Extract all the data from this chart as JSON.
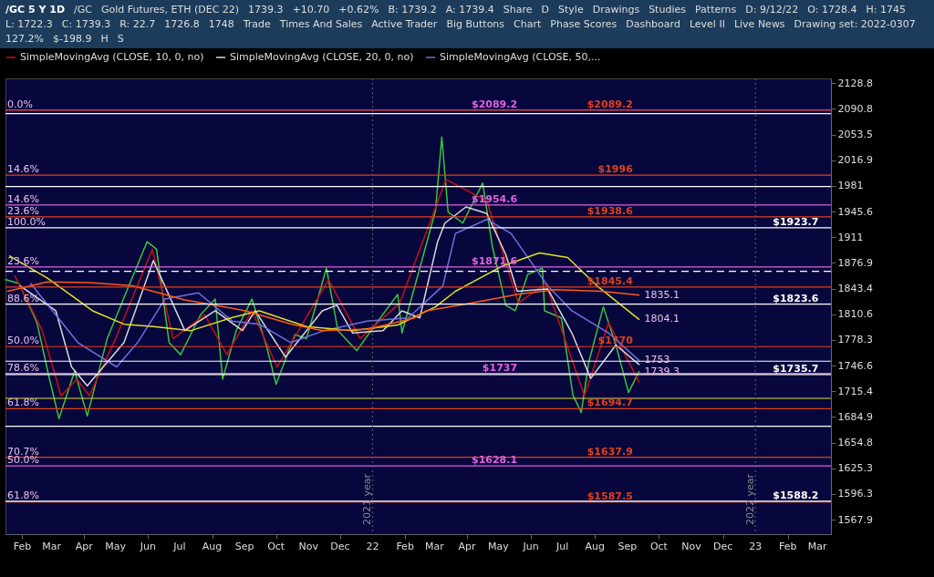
{
  "chart_data": {
    "type": "line",
    "title": "/GC 5 Y 1D",
    "log": true,
    "legend": "top",
    "xlim": [
      "2021-01-16",
      "2023-03-14"
    ],
    "ylim": [
      1552,
      2136
    ],
    "xticks": [
      {
        "value": "2021-02-01",
        "label": "Feb"
      },
      {
        "value": "2021-03-01",
        "label": "Mar"
      },
      {
        "value": "2021-04-01",
        "label": "Apr"
      },
      {
        "value": "2021-05-01",
        "label": "May"
      },
      {
        "value": "2021-06-01",
        "label": "Jun"
      },
      {
        "value": "2021-07-01",
        "label": "Jul"
      },
      {
        "value": "2021-08-01",
        "label": "Aug"
      },
      {
        "value": "2021-09-01",
        "label": "Sep"
      },
      {
        "value": "2021-10-01",
        "label": "Oct"
      },
      {
        "value": "2021-11-01",
        "label": "Nov"
      },
      {
        "value": "2021-12-01",
        "label": "Dec"
      },
      {
        "value": "2022-01-01",
        "label": "22"
      },
      {
        "value": "2022-02-01",
        "label": "Feb"
      },
      {
        "value": "2022-03-01",
        "label": "Mar"
      },
      {
        "value": "2022-04-01",
        "label": "Apr"
      },
      {
        "value": "2022-05-01",
        "label": "May"
      },
      {
        "value": "2022-06-01",
        "label": "Jun"
      },
      {
        "value": "2022-07-01",
        "label": "Jul"
      },
      {
        "value": "2022-08-01",
        "label": "Aug"
      },
      {
        "value": "2022-09-01",
        "label": "Sep"
      },
      {
        "value": "2022-10-01",
        "label": "Oct"
      },
      {
        "value": "2022-11-01",
        "label": "Nov"
      },
      {
        "value": "2022-12-01",
        "label": "Dec"
      },
      {
        "value": "2023-01-01",
        "label": "23"
      },
      {
        "value": "2023-02-01",
        "label": "Feb"
      },
      {
        "value": "2023-03-01",
        "label": "Mar"
      }
    ],
    "yticks": [
      1567.9,
      1596.3,
      1625.3,
      1654.8,
      1684.9,
      1715.4,
      1746.6,
      1778.3,
      1810.6,
      1843.4,
      1876.9,
      1911,
      1945.6,
      1981,
      2016.9,
      2053.5,
      2090.8,
      2128.8
    ],
    "series": [
      {
        "color": "#3cc43c",
        "x": [
          "2021-01-16",
          "2021-01-29",
          "2021-02-15",
          "2021-02-27",
          "2021-03-08",
          "2021-03-23",
          "2021-04-04",
          "2021-04-23",
          "2021-05-10",
          "2021-05-31",
          "2021-06-09",
          "2021-06-21",
          "2021-07-02",
          "2021-07-21",
          "2021-08-04",
          "2021-08-11",
          "2021-08-24",
          "2021-09-08",
          "2021-09-22",
          "2021-10-01",
          "2021-10-19",
          "2021-10-30",
          "2021-11-18",
          "2021-11-29",
          "2021-12-17",
          "2022-01-05",
          "2022-01-25",
          "2022-01-29",
          "2022-02-15",
          "2022-03-02",
          "2022-03-08",
          "2022-03-14",
          "2022-03-28",
          "2022-04-16",
          "2022-04-25",
          "2022-05-08",
          "2022-05-17",
          "2022-05-29",
          "2022-06-12",
          "2022-06-14",
          "2022-06-30",
          "2022-07-11",
          "2022-07-19",
          "2022-07-26",
          "2022-08-09",
          "2022-08-21",
          "2022-09-02",
          "2022-09-12"
        ],
        "values": [
          1855,
          1850,
          1800,
          1730,
          1683,
          1740,
          1686,
          1780,
          1835,
          1905,
          1895,
          1775,
          1760,
          1810,
          1830,
          1730,
          1790,
          1830,
          1770,
          1724,
          1785,
          1780,
          1870,
          1790,
          1765,
          1800,
          1836,
          1787,
          1870,
          1947,
          2050,
          1945,
          1930,
          1985,
          1900,
          1822,
          1815,
          1862,
          1870,
          1815,
          1806,
          1711,
          1690,
          1750,
          1820,
          1772,
          1714,
          1739.3
        ]
      },
      {
        "name": "SimpleMovingAvg (CLOSE, 10, 0, no)",
        "color": "#c81010",
        "x": [
          "2021-01-25",
          "2021-02-20",
          "2021-03-10",
          "2021-03-25",
          "2021-04-06",
          "2021-05-01",
          "2021-06-05",
          "2021-06-25",
          "2021-07-25",
          "2021-08-15",
          "2021-09-08",
          "2021-10-02",
          "2021-11-20",
          "2021-12-20",
          "2022-01-27",
          "2022-03-12",
          "2022-04-20",
          "2022-05-20",
          "2022-06-15",
          "2022-07-22",
          "2022-08-14",
          "2022-09-12"
        ],
        "values": [
          1860,
          1790,
          1710,
          1730,
          1710,
          1780,
          1895,
          1780,
          1810,
          1760,
          1815,
          1745,
          1855,
          1780,
          1825,
          1990,
          1960,
          1825,
          1850,
          1710,
          1800,
          1726.8
        ]
      },
      {
        "name": "SimpleMovingAvg (CLOSE, 20, 0, no)",
        "color": "#d8d8d8",
        "x": [
          "2021-01-30",
          "2021-03-05",
          "2021-03-20",
          "2021-04-04",
          "2021-05-09",
          "2021-06-06",
          "2021-07-06",
          "2021-08-04",
          "2021-08-30",
          "2021-09-11",
          "2021-10-10",
          "2021-11-14",
          "2021-11-28",
          "2021-12-13",
          "2022-01-11",
          "2022-01-29",
          "2022-02-15",
          "2022-03-04",
          "2022-03-11",
          "2022-03-31",
          "2022-04-20",
          "2022-05-08",
          "2022-05-19",
          "2022-06-17",
          "2022-07-10",
          "2022-07-28",
          "2022-08-21",
          "2022-09-12"
        ],
        "values": [
          1847,
          1815,
          1745,
          1722,
          1775,
          1880,
          1790,
          1815,
          1790,
          1815,
          1757,
          1815,
          1822,
          1787,
          1790,
          1815,
          1806,
          1905,
          1930,
          1952,
          1943,
          1888,
          1840,
          1843,
          1787,
          1731,
          1772,
          1748
        ]
      },
      {
        "name": "SimpleMovingAvg (CLOSE, 50,...",
        "color": "#7070e0",
        "x": [
          "2021-02-09",
          "2021-03-26",
          "2021-05-02",
          "2021-05-22",
          "2021-06-17",
          "2021-07-19",
          "2021-08-20",
          "2021-09-15",
          "2021-10-15",
          "2021-11-16",
          "2021-12-27",
          "2022-02-04",
          "2022-03-09",
          "2022-03-21",
          "2022-04-20",
          "2022-05-13",
          "2022-06-17",
          "2022-07-10",
          "2022-08-14",
          "2022-09-12"
        ],
        "values": [
          1850,
          1775,
          1745,
          1775,
          1830,
          1838,
          1802,
          1798,
          1775,
          1790,
          1802,
          1806,
          1847,
          1916,
          1935,
          1916,
          1847,
          1815,
          1787,
          1753
        ]
      },
      {
        "color": "#e0e020",
        "x": [
          "2021-01-20",
          "2021-02-25",
          "2021-04-09",
          "2021-05-09",
          "2021-06-06",
          "2021-07-12",
          "2021-08-19",
          "2021-09-15",
          "2021-10-30",
          "2021-12-13",
          "2022-01-25",
          "2022-03-02",
          "2022-03-21",
          "2022-05-05",
          "2022-06-09",
          "2022-07-06",
          "2022-08-03",
          "2022-09-12"
        ],
        "values": [
          1886,
          1857,
          1815,
          1798,
          1795,
          1790,
          1806,
          1815,
          1795,
          1790,
          1797,
          1820,
          1840,
          1873,
          1890,
          1884,
          1847,
          1804.1
        ]
      },
      {
        "color": "#ff5a14",
        "x": [
          "2021-01-18",
          "2021-02-25",
          "2021-04-09",
          "2021-05-17",
          "2021-07-06",
          "2021-09-02",
          "2021-10-16",
          "2021-11-14",
          "2021-12-28",
          "2022-02-10",
          "2022-02-21",
          "2022-04-06",
          "2022-05-19",
          "2022-06-24",
          "2022-08-07",
          "2022-09-12"
        ],
        "values": [
          1840,
          1852,
          1851,
          1847,
          1829,
          1815,
          1798,
          1790,
          1792,
          1806,
          1815,
          1825,
          1836,
          1842,
          1840,
          1835.1
        ]
      }
    ],
    "ref_lines": [
      {
        "axis": "y",
        "value": 2089.2,
        "label": "$2089.2",
        "color": "#e060e0"
      },
      {
        "axis": "y",
        "value": 2089.2,
        "label": "$2089.2",
        "color": "#e0401a"
      },
      {
        "axis": "y",
        "value": 2084,
        "color": "#ffffff"
      },
      {
        "axis": "y",
        "value": 1996,
        "label": "$1996",
        "color": "#e0401a"
      },
      {
        "axis": "y",
        "value": 1980,
        "color": "#ffffff"
      },
      {
        "axis": "y",
        "value": 1954.6,
        "label": "$1954.6",
        "color": "#e060e0"
      },
      {
        "axis": "y",
        "value": 1938.6,
        "label": "$1938.6",
        "color": "#e0401a"
      },
      {
        "axis": "y",
        "value": 1923.7,
        "label": "$1923.7",
        "color": "#ffffff"
      },
      {
        "axis": "y",
        "value": 1871.6,
        "label": "$1871.6",
        "color": "#e060e0"
      },
      {
        "axis": "y",
        "value": 1866,
        "color": "#ffffff",
        "line_style": "dashed"
      },
      {
        "axis": "y",
        "value": 1845.4,
        "label": "$1845.4",
        "color": "#e0401a"
      },
      {
        "axis": "y",
        "value": 1823.6,
        "label": "$1823.6",
        "color": "#ffffff"
      },
      {
        "axis": "y",
        "value": 1770,
        "label": "$1770",
        "color": "#e0401a"
      },
      {
        "axis": "y",
        "value": 1752,
        "color": "#ffffff"
      },
      {
        "axis": "y",
        "value": 1737,
        "label": "$1737",
        "color": "#e060e0"
      },
      {
        "axis": "y",
        "value": 1735.7,
        "label": "$1735.7",
        "color": "#ffffff"
      },
      {
        "axis": "y",
        "value": 1707,
        "color": "#e0e020"
      },
      {
        "axis": "y",
        "value": 1694.7,
        "label": "$1694.7",
        "color": "#e0401a"
      },
      {
        "axis": "y",
        "value": 1674,
        "color": "#ffffff"
      },
      {
        "axis": "y",
        "value": 1637.9,
        "label": "$1637.9",
        "color": "#e0401a"
      },
      {
        "axis": "y",
        "value": 1628.1,
        "label": "$1628.1",
        "color": "#e060e0"
      },
      {
        "axis": "y",
        "value": 1587.5,
        "label": "$1587.5",
        "color": "#e0401a"
      },
      {
        "axis": "y",
        "value": 1588.2,
        "label": "$1588.2",
        "color": "#ffffff"
      },
      {
        "axis": "x",
        "value": "2022-01-01",
        "label": "2021 year",
        "color": "#555555",
        "line_style": "dotted"
      },
      {
        "axis": "x",
        "value": "2023-01-01",
        "label": "2022 year",
        "color": "#555555",
        "line_style": "dotted"
      }
    ],
    "annotations": [
      "/GC",
      "Gold Futures, ETH (DEC 22)",
      "1739.3",
      "+10.70",
      "+0.62%",
      "B: 1739.2",
      "A: 1739.4",
      "Share",
      "D",
      "Style",
      "Drawings",
      "Studies",
      "Patterns",
      "D: 9/12/22",
      "O: 1728.4",
      "H: 1745",
      "L: 1722.3",
      "C: 1739.3",
      "R: 22.7",
      "1726.8",
      "1748",
      "Trade",
      "Times And Sales",
      "Active Trader",
      "Big Buttons",
      "Chart",
      "Phase Scores",
      "Dashboard",
      "Level II",
      "Live News",
      "Drawing set: 2022-0307",
      {
        "text": "0.0%",
        "x": "2021-01-16",
        "y": 2089.2
      },
      {
        "text": "14.6%",
        "x": "2021-01-16",
        "y": 1996
      },
      {
        "text": "14.6%",
        "x": "2021-01-16",
        "y": 1954.6
      },
      {
        "text": "23.6%",
        "x": "2021-01-16",
        "y": 1938.6
      },
      {
        "text": "100.0%",
        "x": "2021-01-16",
        "y": 1923.7
      },
      {
        "text": "23.6%",
        "x": "2021-01-16",
        "y": 1871.6
      },
      {
        "text": "88.6%",
        "x": "2021-01-16",
        "y": 1823.6
      },
      {
        "text": "50.0%",
        "x": "2021-01-16",
        "y": 1770
      },
      {
        "text": "78.6%",
        "x": "2021-01-16",
        "y": 1737
      },
      {
        "text": "61.8%",
        "x": "2021-01-16",
        "y": 1694.7
      },
      {
        "text": "70.7%",
        "x": "2021-01-16",
        "y": 1637.9
      },
      {
        "text": "50.0%",
        "x": "2021-01-16",
        "y": 1628.1
      },
      {
        "text": "61.8%",
        "x": "2021-01-16",
        "y": 1588.2
      },
      "127.2%",
      "$-198.9",
      "H",
      "S",
      {
        "text": "1835.1",
        "x": "2022-09-12",
        "y": 1835.1
      },
      {
        "text": "1804.1",
        "x": "2022-09-12",
        "y": 1804.1
      },
      {
        "text": "1753",
        "x": "2022-09-12",
        "y": 1753
      },
      {
        "text": "1739.3",
        "x": "2022-09-12",
        "y": 1739.3
      }
    ]
  }
}
